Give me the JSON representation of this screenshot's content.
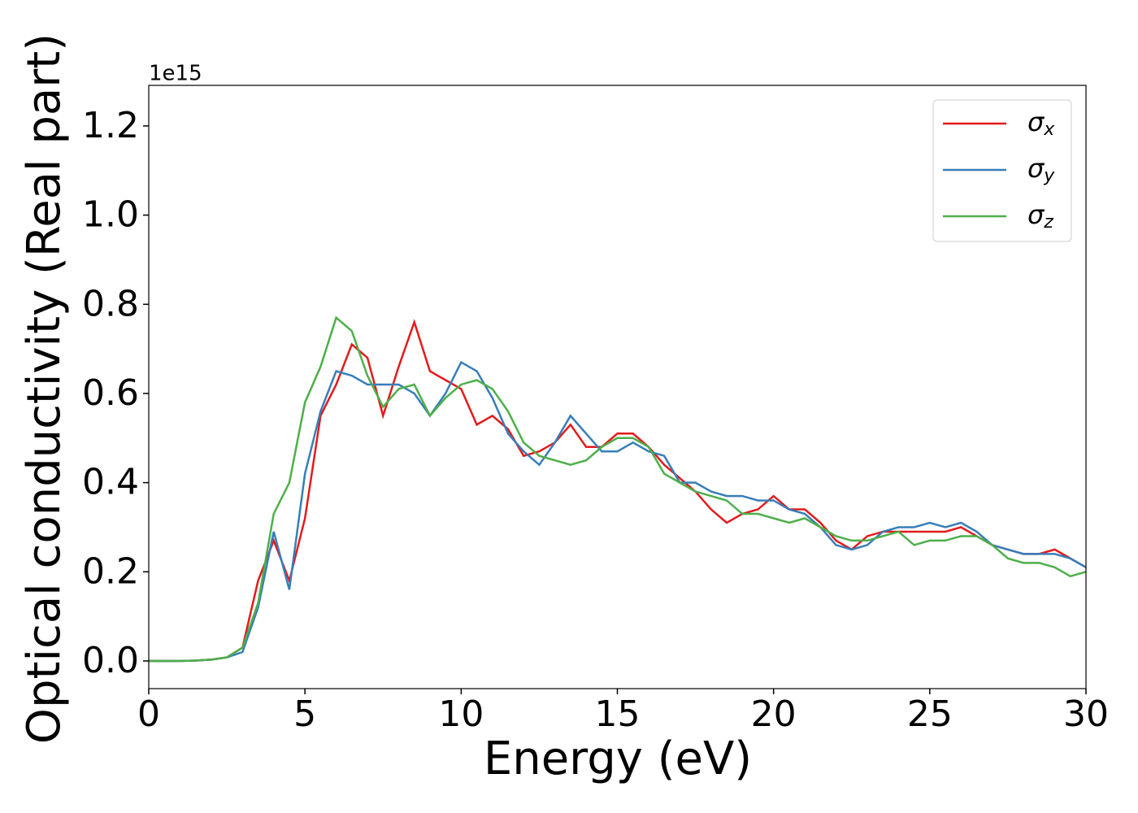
{
  "chart_data": {
    "type": "line",
    "xlabel": "Energy (eV)",
    "ylabel": "Optical conductivity (Real part)",
    "y_offset_label": "1e15",
    "x": [
      0,
      0.5,
      1,
      1.5,
      2,
      2.5,
      3,
      3.5,
      4,
      4.5,
      5,
      5.5,
      6,
      6.5,
      7,
      7.5,
      8,
      8.5,
      9,
      9.5,
      10,
      10.5,
      11,
      11.5,
      12,
      12.5,
      13,
      13.5,
      14,
      14.5,
      15,
      15.5,
      16,
      16.5,
      17,
      17.5,
      18,
      18.5,
      19,
      19.5,
      20,
      20.5,
      21,
      21.5,
      22,
      22.5,
      23,
      23.5,
      24,
      24.5,
      25,
      25.5,
      26,
      26.5,
      27,
      27.5,
      28,
      28.5,
      29,
      29.5,
      30
    ],
    "series": [
      {
        "name": "σx",
        "color": "#e41a1c",
        "values": [
          0,
          0,
          0,
          0.001,
          0.003,
          0.008,
          0.03,
          0.18,
          0.27,
          0.18,
          0.32,
          0.55,
          0.62,
          0.71,
          0.68,
          0.55,
          0.66,
          0.76,
          0.65,
          0.63,
          0.61,
          0.53,
          0.55,
          0.52,
          0.46,
          0.47,
          0.49,
          0.53,
          0.48,
          0.48,
          0.51,
          0.51,
          0.48,
          0.44,
          0.41,
          0.38,
          0.34,
          0.31,
          0.33,
          0.34,
          0.37,
          0.34,
          0.34,
          0.31,
          0.27,
          0.25,
          0.28,
          0.29,
          0.29,
          0.29,
          0.29,
          0.29,
          0.3,
          0.28,
          0.26,
          0.25,
          0.24,
          0.24,
          0.25,
          0.23,
          0.21
        ]
      },
      {
        "name": "σy",
        "color": "#377eb8",
        "values": [
          0,
          0,
          0,
          0.001,
          0.003,
          0.008,
          0.02,
          0.12,
          0.29,
          0.16,
          0.42,
          0.56,
          0.65,
          0.64,
          0.62,
          0.62,
          0.62,
          0.6,
          0.55,
          0.6,
          0.67,
          0.65,
          0.59,
          0.51,
          0.47,
          0.44,
          0.49,
          0.55,
          0.51,
          0.47,
          0.47,
          0.49,
          0.47,
          0.46,
          0.4,
          0.4,
          0.38,
          0.37,
          0.37,
          0.36,
          0.36,
          0.34,
          0.33,
          0.3,
          0.26,
          0.25,
          0.26,
          0.29,
          0.3,
          0.3,
          0.31,
          0.3,
          0.31,
          0.29,
          0.26,
          0.25,
          0.24,
          0.24,
          0.24,
          0.23,
          0.21
        ]
      },
      {
        "name": "σz",
        "color": "#4daf4a",
        "values": [
          0,
          0,
          0,
          0.001,
          0.003,
          0.008,
          0.03,
          0.13,
          0.33,
          0.4,
          0.58,
          0.66,
          0.77,
          0.74,
          0.64,
          0.57,
          0.61,
          0.62,
          0.55,
          0.59,
          0.62,
          0.63,
          0.61,
          0.56,
          0.49,
          0.46,
          0.45,
          0.44,
          0.45,
          0.48,
          0.5,
          0.5,
          0.48,
          0.42,
          0.4,
          0.38,
          0.37,
          0.36,
          0.33,
          0.33,
          0.32,
          0.31,
          0.32,
          0.3,
          0.28,
          0.27,
          0.27,
          0.28,
          0.29,
          0.26,
          0.27,
          0.27,
          0.28,
          0.28,
          0.26,
          0.23,
          0.22,
          0.22,
          0.21,
          0.19,
          0.2
        ]
      }
    ],
    "xlim": [
      0,
      30
    ],
    "xticks": [
      0,
      5,
      10,
      15,
      20,
      25,
      30
    ],
    "ylim": [
      -0.062,
      1.291
    ],
    "yticks": [
      {
        "value": 0,
        "label": "0.0"
      },
      0.2,
      0.4,
      0.6,
      0.8,
      {
        "value": 1,
        "label": "1.0"
      },
      1.2
    ],
    "legend": "upper right",
    "grid": false
  }
}
